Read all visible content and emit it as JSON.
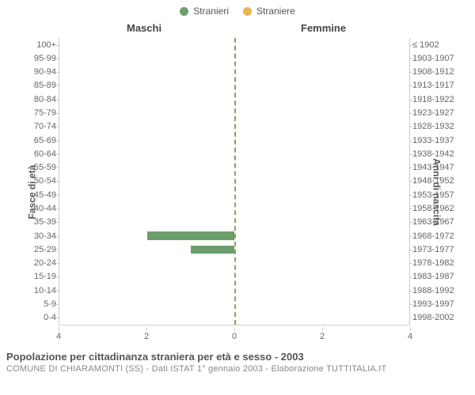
{
  "chart": {
    "type": "population-pyramid",
    "background_color": "#ffffff",
    "plot_border_color": "#cccccc",
    "center_line_color": "#999966",
    "legend": {
      "items": [
        {
          "label": "Stranieri",
          "color": "#6b9e6b"
        },
        {
          "label": "Straniere",
          "color": "#e8b74f"
        }
      ]
    },
    "columns": {
      "left": "Maschi",
      "right": "Femmine"
    },
    "axes": {
      "yLeftLabel": "Fasce di età",
      "yRightLabel": "Anni di nascita",
      "age_bands": [
        "100+",
        "95-99",
        "90-94",
        "85-89",
        "80-84",
        "75-79",
        "70-74",
        "65-69",
        "60-64",
        "55-59",
        "50-54",
        "45-49",
        "40-44",
        "35-39",
        "30-34",
        "25-29",
        "20-24",
        "15-19",
        "10-14",
        "5-9",
        "0-4"
      ],
      "birth_years": [
        "≤ 1902",
        "1903-1907",
        "1908-1912",
        "1913-1917",
        "1918-1922",
        "1923-1927",
        "1928-1932",
        "1933-1937",
        "1938-1942",
        "1943-1947",
        "1948-1952",
        "1953-1957",
        "1958-1962",
        "1963-1967",
        "1968-1972",
        "1973-1977",
        "1978-1982",
        "1983-1987",
        "1988-1992",
        "1993-1997",
        "1998-2002"
      ],
      "x_ticks_left": [
        4,
        2,
        0
      ],
      "x_ticks_right": [
        2,
        4
      ],
      "x_max": 4,
      "tick_fontsize": 11,
      "tick_color": "#666666",
      "header_fontsize": 13,
      "header_color": "#444444",
      "axis_label_fontsize": 12
    },
    "series": {
      "male_color": "#6b9e6b",
      "female_color": "#e8b74f",
      "bar_height_frac": 0.6,
      "data": {
        "100+": {
          "m": 0,
          "f": 0
        },
        "95-99": {
          "m": 0,
          "f": 0
        },
        "90-94": {
          "m": 0,
          "f": 0
        },
        "85-89": {
          "m": 0,
          "f": 0
        },
        "80-84": {
          "m": 0,
          "f": 0
        },
        "75-79": {
          "m": 0,
          "f": 0
        },
        "70-74": {
          "m": 0,
          "f": 0
        },
        "65-69": {
          "m": 0,
          "f": 0
        },
        "60-64": {
          "m": 0,
          "f": 0
        },
        "55-59": {
          "m": 0,
          "f": 0
        },
        "50-54": {
          "m": 0,
          "f": 0
        },
        "45-49": {
          "m": 0,
          "f": 0
        },
        "40-44": {
          "m": 0,
          "f": 0
        },
        "35-39": {
          "m": 0,
          "f": 0
        },
        "30-34": {
          "m": 2,
          "f": 0
        },
        "25-29": {
          "m": 1,
          "f": 0
        },
        "20-24": {
          "m": 0,
          "f": 0
        },
        "15-19": {
          "m": 0,
          "f": 0
        },
        "10-14": {
          "m": 0,
          "f": 0
        },
        "5-9": {
          "m": 0,
          "f": 0
        },
        "0-4": {
          "m": 0,
          "f": 0
        }
      }
    },
    "footer": {
      "title": "Popolazione per cittadinanza straniera per età e sesso - 2003",
      "subtitle": "COMUNE DI CHIARAMONTI (SS) - Dati ISTAT 1° gennaio 2003 - Elaborazione TUTTITALIA.IT",
      "title_color": "#555555",
      "subtitle_color": "#888888",
      "title_fontsize": 13,
      "subtitle_fontsize": 11
    }
  }
}
